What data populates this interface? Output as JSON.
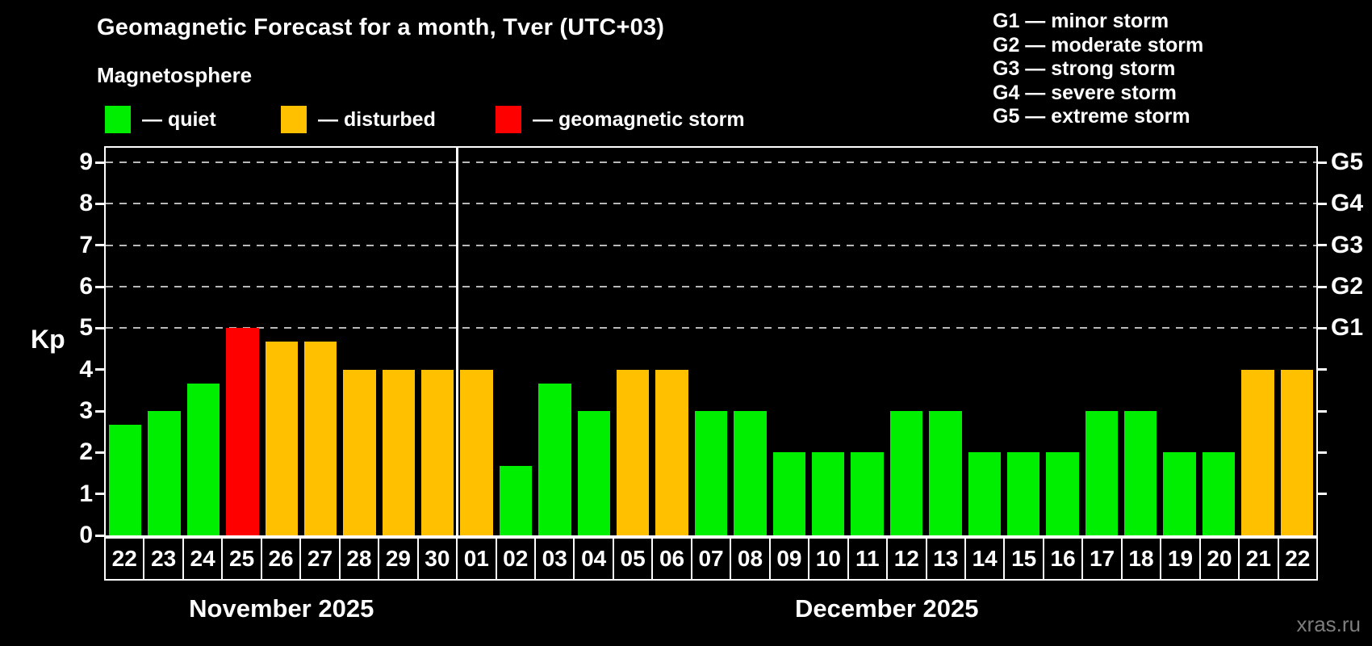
{
  "header": {
    "title": "Geomagnetic Forecast for a month, Tver (UTC+03)",
    "subtitle": "Magnetosphere"
  },
  "legend": {
    "items": [
      {
        "level": "quiet",
        "label": "— quiet"
      },
      {
        "level": "disturbed",
        "label": "— disturbed"
      },
      {
        "level": "storm",
        "label": "— geomagnetic storm"
      }
    ]
  },
  "storm_scale_legend": {
    "items": [
      {
        "label": "G1 — minor storm"
      },
      {
        "label": "G2 — moderate storm"
      },
      {
        "label": "G3 — strong storm"
      },
      {
        "label": "G4 — severe storm"
      },
      {
        "label": "G5 — extreme storm"
      }
    ]
  },
  "colors": {
    "quiet": "#00ee00",
    "disturbed": "#ffc000",
    "storm": "#ff0000",
    "background": "#000000",
    "grid": "#b8b8b8",
    "axis": "#ffffff",
    "watermark": "#7d7d7d"
  },
  "chart_data": {
    "type": "bar",
    "title": "Geomagnetic Forecast for a month, Tver (UTC+03)",
    "subtitle": "Magnetosphere",
    "ylabel": "Kp",
    "ylim": [
      0,
      9
    ],
    "yticks": [
      0,
      1,
      2,
      3,
      4,
      5,
      6,
      7,
      8,
      9
    ],
    "gridlines_at": [
      5,
      6,
      7,
      8,
      9
    ],
    "grid_style": "dashed",
    "right_axis_labels": [
      {
        "value": 5,
        "label": "G1"
      },
      {
        "value": 6,
        "label": "G2"
      },
      {
        "value": 7,
        "label": "G3"
      },
      {
        "value": 8,
        "label": "G4"
      },
      {
        "value": 9,
        "label": "G5"
      }
    ],
    "months": [
      {
        "label": "November 2025",
        "days": 9
      },
      {
        "label": "December 2025",
        "days": 22
      }
    ],
    "categories": [
      "22",
      "23",
      "24",
      "25",
      "26",
      "27",
      "28",
      "29",
      "30",
      "01",
      "02",
      "03",
      "04",
      "05",
      "06",
      "07",
      "08",
      "09",
      "10",
      "11",
      "12",
      "13",
      "14",
      "15",
      "16",
      "17",
      "18",
      "19",
      "20",
      "21",
      "22"
    ],
    "values": [
      2.67,
      3.0,
      3.67,
      5.0,
      4.67,
      4.67,
      4.0,
      4.0,
      4.0,
      4.0,
      1.67,
      3.67,
      3.0,
      4.0,
      4.0,
      3.0,
      3.0,
      2.0,
      2.0,
      2.0,
      3.0,
      3.0,
      2.0,
      2.0,
      2.0,
      3.0,
      3.0,
      2.0,
      2.0,
      4.0,
      4.0
    ],
    "levels": [
      "quiet",
      "quiet",
      "quiet",
      "storm",
      "disturbed",
      "disturbed",
      "disturbed",
      "disturbed",
      "disturbed",
      "disturbed",
      "quiet",
      "quiet",
      "quiet",
      "disturbed",
      "disturbed",
      "quiet",
      "quiet",
      "quiet",
      "quiet",
      "quiet",
      "quiet",
      "quiet",
      "quiet",
      "quiet",
      "quiet",
      "quiet",
      "quiet",
      "quiet",
      "quiet",
      "disturbed",
      "disturbed"
    ]
  },
  "watermark": "xras.ru"
}
